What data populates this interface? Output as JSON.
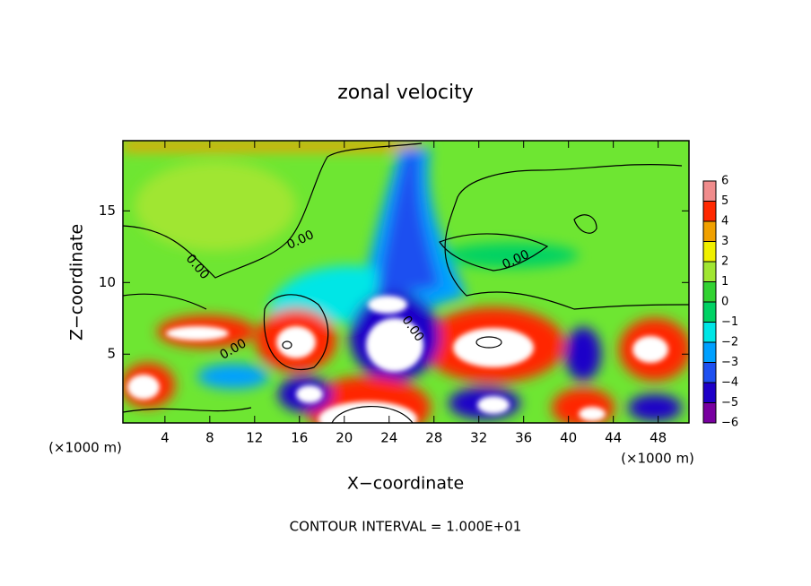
{
  "chart_data": {
    "type": "contour",
    "title": "zonal velocity",
    "x_label": "X−coordinate",
    "y_label": "Z−coordinate",
    "x_unit": "(×1000 m)",
    "footer": "CONTOUR INTERVAL = 1.000E+01",
    "xlim": [
      0.25,
      50.75
    ],
    "ylim": [
      0.2,
      19.9
    ],
    "xticks": [
      4,
      8,
      12,
      16,
      20,
      24,
      28,
      32,
      36,
      40,
      44,
      48
    ],
    "yticks": [
      5,
      10,
      15
    ],
    "colorbar": {
      "levels": [
        {
          "value": -6,
          "label": "−6"
        },
        {
          "value": -5,
          "label": "−5"
        },
        {
          "value": -4,
          "label": "−4"
        },
        {
          "value": -3,
          "label": "−3"
        },
        {
          "value": -2,
          "label": "−2"
        },
        {
          "value": -1,
          "label": "−1"
        },
        0,
        1,
        2,
        3,
        4,
        5,
        6
      ],
      "colors": [
        "#7800a0",
        "#1e00c8",
        "#1e50f0",
        "#00a0ff",
        "#00e6e6",
        "#00d264",
        "#32d232",
        "#a0e632",
        "#f0f000",
        "#f0a000",
        "#ff2800",
        "#f08c8c"
      ]
    },
    "contour_labels": [
      "0.00",
      "0.00",
      "0.00",
      "0.00",
      "0.00"
    ]
  }
}
